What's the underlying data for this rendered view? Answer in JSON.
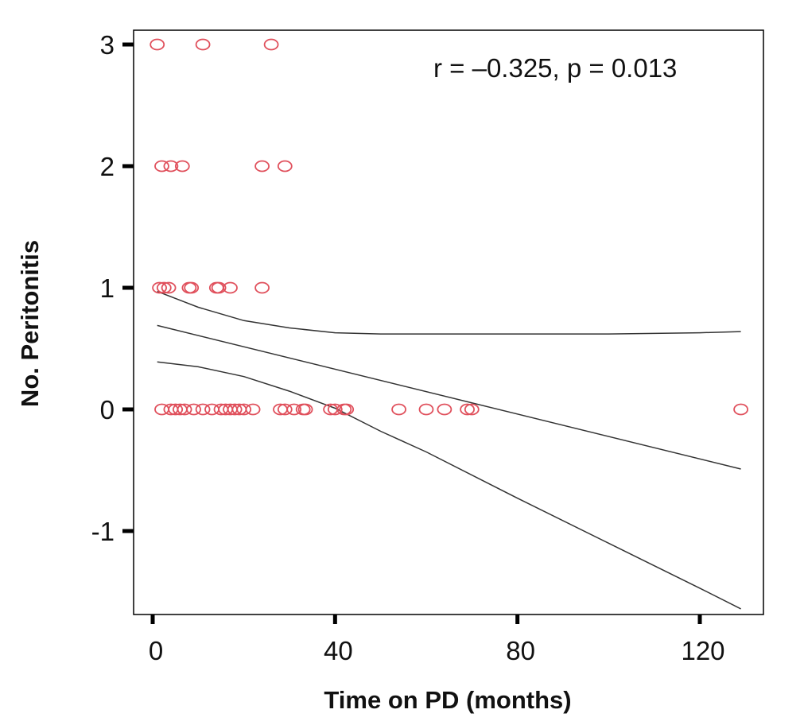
{
  "chart_data": {
    "type": "scatter",
    "title": "",
    "xlabel": "Time on PD (months)",
    "ylabel": "No. Peritonitis",
    "xlim": [
      -4,
      134
    ],
    "ylim": [
      -1.65,
      3.12
    ],
    "x_ticks": [
      0,
      40,
      80,
      120
    ],
    "x_tick_labels": [
      "0",
      "40",
      "80",
      "120"
    ],
    "y_ticks": [
      -1,
      0,
      1,
      2,
      3
    ],
    "y_tick_labels": [
      "-1",
      "0",
      "1",
      "2",
      "3"
    ],
    "grid": false,
    "annotation": "r = –0.325, p = 0.013",
    "colors": {
      "points": "#e0505c",
      "lines": "#333333",
      "axes": "#000000"
    },
    "points": [
      {
        "x": 1,
        "y": 3
      },
      {
        "x": 11,
        "y": 3
      },
      {
        "x": 26,
        "y": 3
      },
      {
        "x": 2,
        "y": 2
      },
      {
        "x": 4,
        "y": 2
      },
      {
        "x": 6.5,
        "y": 2
      },
      {
        "x": 24,
        "y": 2
      },
      {
        "x": 29,
        "y": 2
      },
      {
        "x": 1.5,
        "y": 1
      },
      {
        "x": 2.5,
        "y": 1
      },
      {
        "x": 3.5,
        "y": 1
      },
      {
        "x": 8,
        "y": 1
      },
      {
        "x": 8.5,
        "y": 1
      },
      {
        "x": 14,
        "y": 1
      },
      {
        "x": 14.5,
        "y": 1
      },
      {
        "x": 17,
        "y": 1
      },
      {
        "x": 24,
        "y": 1
      },
      {
        "x": 2,
        "y": 0
      },
      {
        "x": 4,
        "y": 0
      },
      {
        "x": 5,
        "y": 0
      },
      {
        "x": 6,
        "y": 0
      },
      {
        "x": 7,
        "y": 0
      },
      {
        "x": 9,
        "y": 0
      },
      {
        "x": 11,
        "y": 0
      },
      {
        "x": 13,
        "y": 0
      },
      {
        "x": 15,
        "y": 0
      },
      {
        "x": 16,
        "y": 0
      },
      {
        "x": 17,
        "y": 0
      },
      {
        "x": 18,
        "y": 0
      },
      {
        "x": 19,
        "y": 0
      },
      {
        "x": 20,
        "y": 0
      },
      {
        "x": 22,
        "y": 0
      },
      {
        "x": 28,
        "y": 0
      },
      {
        "x": 29,
        "y": 0
      },
      {
        "x": 31,
        "y": 0
      },
      {
        "x": 33,
        "y": 0
      },
      {
        "x": 33.5,
        "y": 0
      },
      {
        "x": 39,
        "y": 0
      },
      {
        "x": 40,
        "y": 0
      },
      {
        "x": 42,
        "y": 0
      },
      {
        "x": 42.5,
        "y": 0
      },
      {
        "x": 54,
        "y": 0
      },
      {
        "x": 60,
        "y": 0
      },
      {
        "x": 64,
        "y": 0
      },
      {
        "x": 69,
        "y": 0
      },
      {
        "x": 70,
        "y": 0
      },
      {
        "x": 129,
        "y": 0
      }
    ],
    "lines": [
      {
        "role": "upper-confidence",
        "x": [
          1,
          10,
          20,
          30,
          40,
          50,
          60,
          80,
          100,
          120,
          129
        ],
        "y": [
          0.97,
          0.84,
          0.73,
          0.67,
          0.63,
          0.62,
          0.62,
          0.62,
          0.62,
          0.63,
          0.64
        ]
      },
      {
        "role": "fit",
        "x": [
          1,
          129
        ],
        "y": [
          0.69,
          -0.49
        ]
      },
      {
        "role": "lower-confidence",
        "x": [
          1,
          10,
          20,
          30,
          40,
          50,
          60,
          80,
          100,
          120,
          129
        ],
        "y": [
          0.39,
          0.35,
          0.27,
          0.15,
          0.01,
          -0.18,
          -0.35,
          -0.73,
          -1.1,
          -1.47,
          -1.64
        ]
      }
    ]
  }
}
